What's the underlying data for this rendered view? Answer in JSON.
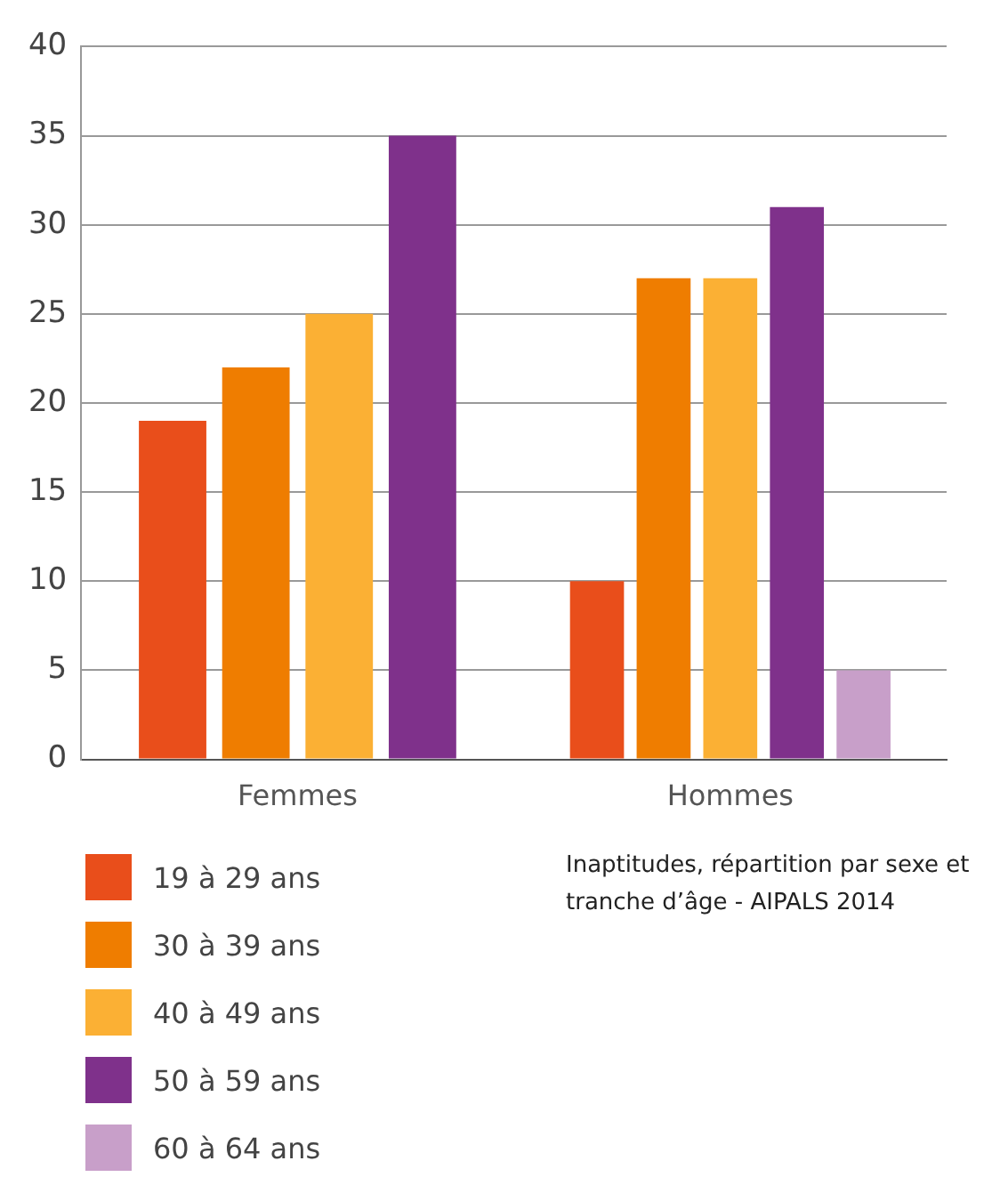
{
  "chart_data": {
    "type": "bar",
    "categories": [
      "Femmes",
      "Hommes"
    ],
    "series": [
      {
        "name": "19 à 29 ans",
        "color": "#e94e1b",
        "values": [
          19,
          10
        ]
      },
      {
        "name": "30 à 39 ans",
        "color": "#ef7d00",
        "values": [
          22,
          27
        ]
      },
      {
        "name": "40 à 49 ans",
        "color": "#fbb034",
        "values": [
          25,
          27
        ]
      },
      {
        "name": "50 à 59 ans",
        "color": "#7f318b",
        "values": [
          35,
          31
        ]
      },
      {
        "name": "60 à 64 ans",
        "color": "#c89fc9",
        "values": [
          null,
          5
        ]
      }
    ],
    "ylim": [
      0,
      40
    ],
    "yticks": [
      0,
      5,
      10,
      15,
      20,
      25,
      30,
      35,
      40
    ],
    "grid": "y",
    "legend": "bottom left",
    "annotations": [
      "Inaptitudes, répartition par sexe et tranche d’âge - AIPALS 2014"
    ]
  }
}
